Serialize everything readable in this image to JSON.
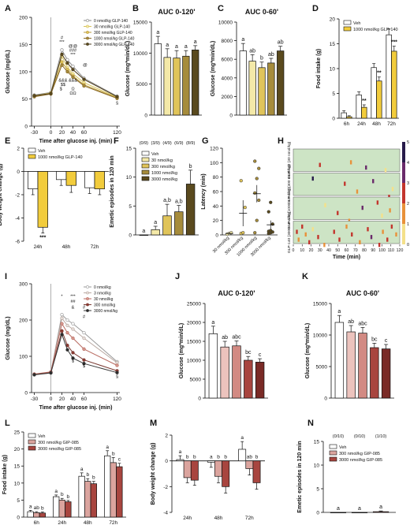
{
  "colors": {
    "glp": [
      "#ffffff",
      "#f4e9a8",
      "#e0c45a",
      "#a68c3c",
      "#5a4a1e"
    ],
    "glp_veh": "#ffffff",
    "glp_drug": "#f2cc3c",
    "gip": [
      "#ffffff",
      "#dba49e",
      "#a8453f"
    ],
    "gip_line": [
      "#9a9a9a",
      "#b9a9a2",
      "#b86a60",
      "#7a3a33",
      "#3a3a3a"
    ],
    "heat": [
      "#cde4c5",
      "#f4e08a",
      "#e8913a",
      "#c3352d",
      "#6a2a6a",
      "#271a4a"
    ]
  },
  "chart_data": [
    {
      "panel": "A",
      "type": "line",
      "x": [
        -30,
        0,
        20,
        30,
        40,
        60,
        120
      ],
      "xlabel": "Time after glucose inj. (min)",
      "ylabel": "Glucose (mg/dL)",
      "ylim": [
        0,
        200
      ],
      "xticks": [
        -30,
        0,
        20,
        40,
        60,
        120
      ],
      "yticks": [
        0,
        50,
        100,
        150,
        200
      ],
      "legend": "top-right",
      "series": [
        {
          "name": "0 nmol/kg GLP-140",
          "values": [
            57,
            62,
            140,
            122,
            110,
            88,
            55
          ]
        },
        {
          "name": "30 nmol/kg GLP-140",
          "values": [
            56,
            61,
            128,
            108,
            96,
            80,
            53
          ]
        },
        {
          "name": "300 nmol/kg GLP-140",
          "values": [
            55,
            60,
            118,
            104,
            92,
            76,
            52
          ]
        },
        {
          "name": "1000 nmol/kg GLP-140",
          "values": [
            54,
            59,
            112,
            100,
            90,
            74,
            51
          ]
        },
        {
          "name": "3000 nmol/kg GLP-140",
          "values": [
            56,
            60,
            132,
            116,
            104,
            86,
            54
          ]
        }
      ],
      "annotations": [
        "#",
        "***",
        "@@",
        "###",
        "***",
        "@",
        "&&&",
        "$$",
        "$",
        "&&&",
        "Ω",
        "ΩΩ",
        "§"
      ]
    },
    {
      "panel": "B",
      "type": "bar",
      "title": "AUC 0-120'",
      "ylabel": "Glucose (mg*min/dL)",
      "ylim": [
        0,
        15000
      ],
      "yticks": [
        0,
        5000,
        10000,
        15000
      ],
      "values": [
        11500,
        9300,
        9200,
        9500,
        10500
      ],
      "errors": [
        1200,
        1400,
        1200,
        900,
        700
      ],
      "letters": [
        "a",
        "a",
        "a",
        "a",
        "a"
      ]
    },
    {
      "panel": "C",
      "type": "bar",
      "title": "AUC 0-60'",
      "ylabel": "Glucose (mg*min/dL)",
      "ylim": [
        0,
        10000
      ],
      "yticks": [
        0,
        2000,
        4000,
        6000,
        8000,
        10000
      ],
      "values": [
        6900,
        5800,
        5100,
        5600,
        6900
      ],
      "errors": [
        800,
        700,
        600,
        500,
        500
      ],
      "letters": [
        "a",
        "ab",
        "b",
        "ab",
        "ab"
      ]
    },
    {
      "panel": "D",
      "type": "bar",
      "categories": [
        "6h",
        "24h",
        "48h",
        "72h"
      ],
      "ylabel": "Food intake (g)",
      "ylim": [
        0,
        20
      ],
      "yticks": [
        0,
        5,
        10,
        15,
        20
      ],
      "legend": "top-left",
      "series": [
        {
          "name": "Veh",
          "values": [
            1.1,
            4.7,
            10.2,
            16.8
          ],
          "errors": [
            0.4,
            0.6,
            0.8,
            1.2
          ]
        },
        {
          "name": "1000 nmol/kg GLP-140",
          "values": [
            0.3,
            2.2,
            7.5,
            13.5
          ],
          "errors": [
            0.2,
            0.5,
            0.8,
            1.0
          ]
        }
      ],
      "sig": [
        "",
        "**",
        "**",
        "***"
      ]
    },
    {
      "panel": "E",
      "type": "bar",
      "categories": [
        "24h",
        "48h",
        "72h"
      ],
      "ylabel": "Body weight change (g)",
      "ylim": [
        -6,
        2
      ],
      "yticks": [
        -6,
        -4,
        -2,
        0,
        2
      ],
      "legend": "top-left",
      "series": [
        {
          "name": "Veh",
          "values": [
            -1.5,
            -0.7,
            -1.4
          ],
          "errors": [
            0.5,
            0.5,
            0.5
          ]
        },
        {
          "name": "1000 nmol/kg GLP-140",
          "values": [
            -4.8,
            -1.2,
            -1.5
          ],
          "errors": [
            0.5,
            0.6,
            0.5
          ]
        }
      ],
      "sig": [
        "***",
        "",
        ""
      ]
    },
    {
      "panel": "F",
      "type": "bar",
      "ylabel": "Emetic episodes in 120 min",
      "ylim": [
        0,
        15
      ],
      "yticks": [
        0,
        5,
        10,
        15
      ],
      "legend": "top-left",
      "names": [
        "Veh",
        "30 nmol/kg",
        "300 nmol/kg",
        "1000 nmol/kg",
        "3000 nmol/kg"
      ],
      "values": [
        0,
        0.9,
        3.3,
        4.0,
        8.8
      ],
      "errors": [
        0,
        0.6,
        2.0,
        1.1,
        2.4
      ],
      "letters": [
        "a",
        "a",
        "a,b",
        "a,b",
        "b"
      ],
      "counts": [
        "(0/9)",
        "(3/9)",
        "(4/9)",
        "(6/9)",
        "(8/9)"
      ]
    },
    {
      "panel": "G",
      "type": "scatter",
      "categories": [
        "30 nmol/kg",
        "300 nmol/kg",
        "1000 nmol/kg",
        "3000 nmol/kg"
      ],
      "ylabel": "Latency (min)",
      "ylim": [
        0,
        120
      ],
      "yticks": [
        0,
        20,
        40,
        60,
        80,
        100,
        120
      ],
      "points": [
        [
          1,
          2,
          3
        ],
        [
          2,
          3,
          38,
          75
        ],
        [
          3,
          20,
          48,
          58,
          78,
          92,
          102
        ],
        [
          2,
          3,
          4,
          5,
          6,
          15,
          32,
          45
        ]
      ],
      "means": [
        2,
        30,
        57,
        14
      ],
      "sems": [
        1,
        18,
        12,
        6
      ]
    },
    {
      "panel": "H",
      "type": "heatmap",
      "rows": [
        "GLP-140 (30 nmol/kg)",
        "GLP-140 (300 nmol/kg)",
        "GLP-140 (1000 nmol/kg)",
        "GLP-140 (3000 nmol/kg)"
      ],
      "xlabel": "Time (min)",
      "xlim": [
        0,
        120
      ],
      "xticks": [
        0,
        10,
        20,
        30,
        40,
        50,
        60,
        70,
        80,
        90,
        100,
        110,
        120
      ],
      "colorbar": [
        0,
        1,
        2,
        3,
        4,
        5
      ],
      "events": [
        [
          [
            30,
            5,
            3
          ],
          [
            65,
            4,
            2
          ],
          [
            82,
            6,
            4
          ],
          [
            104,
            7,
            1
          ]
        ],
        [
          [
            22,
            1,
            5
          ],
          [
            58,
            3,
            3
          ],
          [
            72,
            6,
            2
          ],
          [
            90,
            2,
            4
          ],
          [
            108,
            8,
            3
          ],
          [
            112,
            5,
            1
          ]
        ],
        [
          [
            36,
            2,
            1
          ],
          [
            50,
            5,
            3
          ],
          [
            63,
            8,
            2
          ],
          [
            78,
            3,
            4
          ],
          [
            95,
            1,
            3
          ],
          [
            100,
            6,
            1
          ],
          [
            109,
            4,
            2
          ]
        ],
        [
          [
            4,
            3,
            3
          ],
          [
            6,
            6,
            2
          ],
          [
            10,
            1,
            3
          ],
          [
            14,
            4,
            2
          ],
          [
            18,
            7,
            3
          ],
          [
            22,
            2,
            1
          ],
          [
            28,
            5,
            3
          ],
          [
            35,
            8,
            2
          ],
          [
            46,
            3,
            3
          ],
          [
            52,
            6,
            3
          ],
          [
            60,
            1,
            2
          ],
          [
            66,
            4,
            3
          ],
          [
            75,
            7,
            2
          ],
          [
            84,
            2,
            3
          ],
          [
            88,
            5,
            4
          ],
          [
            97,
            8,
            3
          ],
          [
            101,
            3,
            2
          ],
          [
            106,
            6,
            3
          ],
          [
            111,
            1,
            3
          ],
          [
            116,
            4,
            2
          ]
        ]
      ]
    },
    {
      "panel": "I",
      "type": "line",
      "x": [
        -30,
        0,
        20,
        30,
        40,
        60,
        120
      ],
      "xlabel": "Time after glucose inj. (min)",
      "ylabel": "Glucose (mg/dL)",
      "ylim": [
        0,
        300
      ],
      "xticks": [
        -30,
        0,
        20,
        40,
        60,
        120
      ],
      "yticks": [
        0,
        100,
        200,
        300
      ],
      "legend": "top-right",
      "series": [
        {
          "name": "0 nmol/kg",
          "values": [
            50,
            55,
            215,
            200,
            190,
            165,
            85
          ]
        },
        {
          "name": "3 nmol/kg",
          "values": [
            50,
            56,
            205,
            185,
            175,
            150,
            82
          ]
        },
        {
          "name": "30 nmol/kg",
          "values": [
            51,
            57,
            190,
            165,
            150,
            120,
            75
          ]
        },
        {
          "name": "300 nmol/kg",
          "values": [
            50,
            55,
            170,
            130,
            110,
            90,
            60
          ]
        },
        {
          "name": "3000 nmol/kg",
          "values": [
            49,
            54,
            160,
            118,
            95,
            80,
            55
          ]
        }
      ],
      "annotations": [
        "*",
        "***",
        "#",
        "##",
        "&",
        "#",
        "$",
        "$",
        "§"
      ]
    },
    {
      "panel": "J",
      "type": "bar",
      "title": "AUC 0-120'",
      "ylabel": "Glucose (mg*min/dL)",
      "ylim": [
        0,
        25000
      ],
      "yticks": [
        0,
        5000,
        10000,
        15000,
        20000,
        25000
      ],
      "values": [
        17000,
        13500,
        13800,
        10000,
        9500
      ],
      "errors": [
        2000,
        1500,
        1300,
        1000,
        900
      ],
      "letters": [
        "a",
        "ab",
        "abc",
        "bc",
        "c"
      ]
    },
    {
      "panel": "K",
      "type": "bar",
      "title": "AUC 0-60'",
      "ylabel": "Glucose (mg*min/dL)",
      "ylim": [
        0,
        15000
      ],
      "yticks": [
        0,
        5000,
        10000,
        15000
      ],
      "values": [
        12000,
        10500,
        10300,
        8000,
        7800
      ],
      "errors": [
        1100,
        1000,
        900,
        700,
        700
      ],
      "letters": [
        "a",
        "ab",
        "abc",
        "bc",
        "c"
      ]
    },
    {
      "panel": "L",
      "type": "bar",
      "categories": [
        "6h",
        "24h",
        "48h",
        "72h"
      ],
      "ylabel": "Food intake (g)",
      "ylim": [
        0,
        25
      ],
      "yticks": [
        0,
        5,
        10,
        15,
        20,
        25
      ],
      "legend": "top-left",
      "series": [
        {
          "name": "Veh",
          "values": [
            1.6,
            6.0,
            12.0,
            18.0
          ],
          "errors": [
            0.4,
            0.5,
            1.0,
            1.5
          ]
        },
        {
          "name": "300 nmol/kg GIP-085",
          "values": [
            1.3,
            5.0,
            10.5,
            16.0
          ],
          "errors": [
            0.3,
            0.5,
            0.8,
            1.5
          ]
        },
        {
          "name": "3000 nmol/kg GIP-085",
          "values": [
            1.2,
            4.5,
            9.8,
            14.8
          ],
          "errors": [
            0.3,
            0.4,
            0.7,
            1.0
          ]
        }
      ],
      "letters": [
        [
          "a",
          "ab",
          "b"
        ],
        [
          "a",
          "b",
          "b"
        ],
        [
          "a",
          "b",
          "b"
        ],
        [
          "a",
          "b",
          "c"
        ]
      ]
    },
    {
      "panel": "M",
      "type": "bar",
      "categories": [
        "24h",
        "48h",
        "72h"
      ],
      "ylabel": "Body weight change (g)",
      "ylim": [
        -4,
        2
      ],
      "yticks": [
        -4,
        -2,
        0,
        2
      ],
      "series": [
        {
          "name": "Veh",
          "values": [
            0.1,
            -0.1,
            0.9
          ],
          "errors": [
            0.3,
            0.4,
            0.6
          ]
        },
        {
          "name": "300 nmol/kg GIP-085",
          "values": [
            -1.3,
            -1.2,
            -0.6
          ],
          "errors": [
            0.4,
            0.5,
            0.5
          ]
        },
        {
          "name": "3000 nmol/kg GIP-085",
          "values": [
            -1.5,
            -2.0,
            -1.7
          ],
          "errors": [
            0.4,
            0.5,
            0.5
          ]
        }
      ],
      "letters": [
        [
          "a",
          "b",
          "b"
        ],
        [
          "a",
          "b",
          "b"
        ],
        [
          "a",
          "ab",
          "b"
        ]
      ]
    },
    {
      "panel": "N",
      "type": "bar",
      "ylabel": "Emetic episodes in 120 min",
      "ylim": [
        0,
        15
      ],
      "yticks": [
        0,
        5,
        10,
        15
      ],
      "legend": "top-left",
      "names": [
        "Veh",
        "300 nmol/kg GIP-085",
        "3000 nmol/kg GIP-085"
      ],
      "values": [
        0,
        0,
        0.15
      ],
      "errors": [
        0,
        0,
        0.15
      ],
      "letters": [
        "a",
        "a",
        "a"
      ],
      "counts": [
        "(0/10)",
        "(0/10)",
        "(1/10)"
      ]
    }
  ]
}
